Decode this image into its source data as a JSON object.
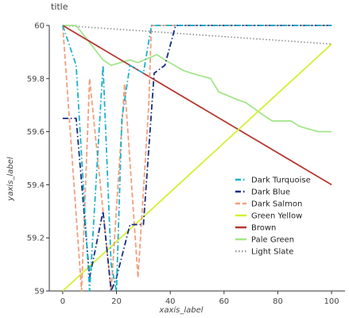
{
  "chart_data": {
    "type": "line",
    "title": "title",
    "xlabel": "xaxis_label",
    "ylabel": "yaxis_label",
    "xlim": [
      -5,
      105
    ],
    "ylim": [
      59.0,
      60.0
    ],
    "x_ticks": [
      "0",
      "20",
      "40",
      "60",
      "80",
      "100"
    ],
    "y_ticks": [
      "59",
      "59.2",
      "59.4",
      "59.6",
      "59.8",
      "60"
    ],
    "grid": false,
    "legend": "right",
    "series": [
      {
        "name": "Light Slate",
        "color": "#999999",
        "dash": "dotted",
        "x": [
          0,
          100
        ],
        "y": [
          60.0,
          59.93
        ]
      },
      {
        "name": "Pale Green",
        "color": "#a5e58b",
        "dash": "solid",
        "x": [
          0,
          5,
          15,
          18,
          25,
          28,
          35,
          38,
          45,
          48,
          55,
          58,
          65,
          68,
          75,
          78,
          85,
          88,
          95,
          100
        ],
        "y": [
          60.0,
          60.0,
          59.87,
          59.85,
          59.87,
          59.86,
          59.89,
          59.87,
          59.83,
          59.82,
          59.8,
          59.75,
          59.72,
          59.71,
          59.66,
          59.64,
          59.64,
          59.62,
          59.6,
          59.6
        ]
      },
      {
        "name": "Brown",
        "color": "#b4372e",
        "dash": "solid",
        "x": [
          0,
          100
        ],
        "y": [
          60.0,
          59.4
        ]
      },
      {
        "name": "Green Yellow",
        "color": "#d4f031",
        "dash": "solid",
        "x": [
          0,
          100
        ],
        "y": [
          59.0,
          59.93
        ]
      },
      {
        "name": "Dark Salmon",
        "color": "#f29f7d",
        "dash": "dashed",
        "x": [
          0,
          7,
          10,
          18,
          23,
          28,
          32,
          33,
          100
        ],
        "y": [
          60.0,
          59.0,
          59.8,
          59.0,
          59.78,
          59.05,
          59.7,
          60.0,
          60.0
        ]
      },
      {
        "name": "Dark Blue",
        "color": "#142d82",
        "dash": "dashdot",
        "x": [
          0,
          5,
          10,
          15,
          18,
          20,
          25,
          30,
          34,
          38,
          42,
          100
        ],
        "y": [
          59.65,
          59.65,
          59.05,
          59.3,
          59.0,
          59.05,
          59.25,
          59.25,
          59.82,
          59.85,
          60.0,
          60.0
        ]
      },
      {
        "name": "Dark Turquoise",
        "color": "#1ab1c9",
        "dash": "dashdot",
        "x": [
          0,
          5,
          10,
          15,
          18,
          20,
          22,
          25,
          30,
          33,
          100
        ],
        "y": [
          60.0,
          59.85,
          59.0,
          59.85,
          59.1,
          59.0,
          59.65,
          59.85,
          59.82,
          60.0,
          60.0
        ]
      }
    ]
  }
}
